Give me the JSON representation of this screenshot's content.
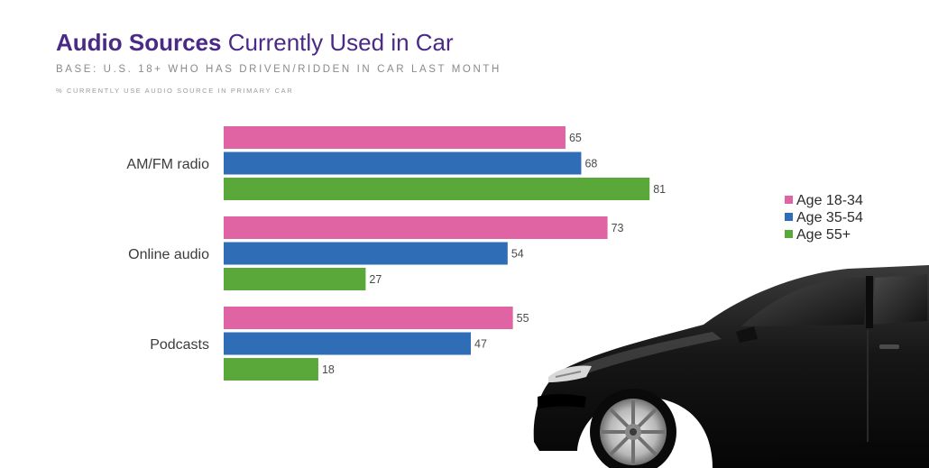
{
  "header": {
    "title_strong": "Audio Sources",
    "title_rest": " Currently Used in Car",
    "subtitle": "BASE: U.S. 18+ WHO HAS DRIVEN/RIDDEN IN CAR LAST MONTH",
    "note": "% CURRENTLY USE AUDIO SOURCE IN PRIMARY CAR"
  },
  "chart_data": {
    "type": "bar",
    "orientation": "horizontal",
    "title": "Audio Sources Currently Used in Car",
    "categories": [
      "AM/FM radio",
      "Online audio",
      "Podcasts"
    ],
    "series": [
      {
        "name": "Age 18-34",
        "values": [
          65,
          73,
          55
        ],
        "color": "#e064a3"
      },
      {
        "name": "Age 35-54",
        "values": [
          68,
          54,
          47
        ],
        "color": "#2f6db6"
      },
      {
        "name": "Age 55+",
        "values": [
          81,
          27,
          18
        ],
        "color": "#5aa83a"
      }
    ],
    "xlim": [
      0,
      100
    ],
    "grid": false,
    "data_labels": true,
    "legend_placement": "right"
  },
  "colors": {
    "title": "#4a2a86",
    "subtitle": "#8a8a8a"
  },
  "decoration": {
    "image": "black sedan car"
  }
}
